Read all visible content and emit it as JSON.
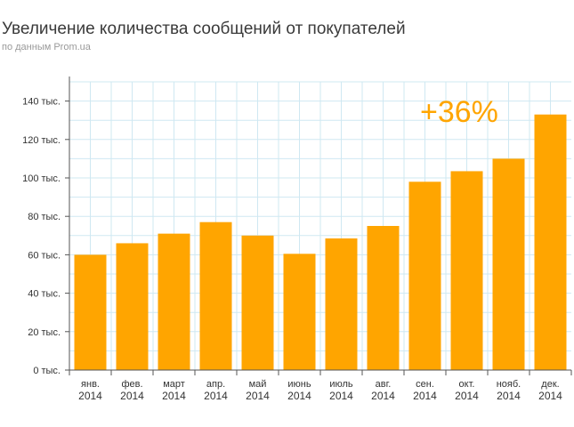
{
  "header": {
    "title": "Увеличение количества сообщений от покупателей",
    "subtitle": "по данным Prom.ua"
  },
  "colors": {
    "bar": "#ffa500",
    "grid": "#cfe8f2",
    "axis": "#555555",
    "annotation": "#ffa500"
  },
  "chart_data": {
    "type": "bar",
    "title": "Увеличение количества сообщений от покупателей",
    "subtitle": "по данным Prom.ua",
    "xlabel": "",
    "ylabel": "",
    "categories": [
      {
        "month": "янв.",
        "year": "2014"
      },
      {
        "month": "фев.",
        "year": "2014"
      },
      {
        "month": "март",
        "year": "2014"
      },
      {
        "month": "апр.",
        "year": "2014"
      },
      {
        "month": "май",
        "year": "2014"
      },
      {
        "month": "июнь",
        "year": "2014"
      },
      {
        "month": "июль",
        "year": "2014"
      },
      {
        "month": "авг.",
        "year": "2014"
      },
      {
        "month": "сен.",
        "year": "2014"
      },
      {
        "month": "окт.",
        "year": "2014"
      },
      {
        "month": "нояб.",
        "year": "2014"
      },
      {
        "month": "дек.",
        "year": "2014"
      }
    ],
    "values": [
      60000,
      66000,
      71000,
      77000,
      70000,
      60500,
      68500,
      75000,
      98000,
      103500,
      110000,
      133000
    ],
    "ylim": [
      0,
      150000
    ],
    "yticks": [
      {
        "value": 0,
        "label": "0 тыс."
      },
      {
        "value": 20000,
        "label": "20 тыс."
      },
      {
        "value": 40000,
        "label": "40 тыс."
      },
      {
        "value": 60000,
        "label": "60 тыс."
      },
      {
        "value": 80000,
        "label": "80 тыс."
      },
      {
        "value": 100000,
        "label": "100 тыс."
      },
      {
        "value": 120000,
        "label": "120 тыс."
      },
      {
        "value": 140000,
        "label": "140 тыс."
      }
    ],
    "grid": true,
    "annotation": "+36%"
  }
}
